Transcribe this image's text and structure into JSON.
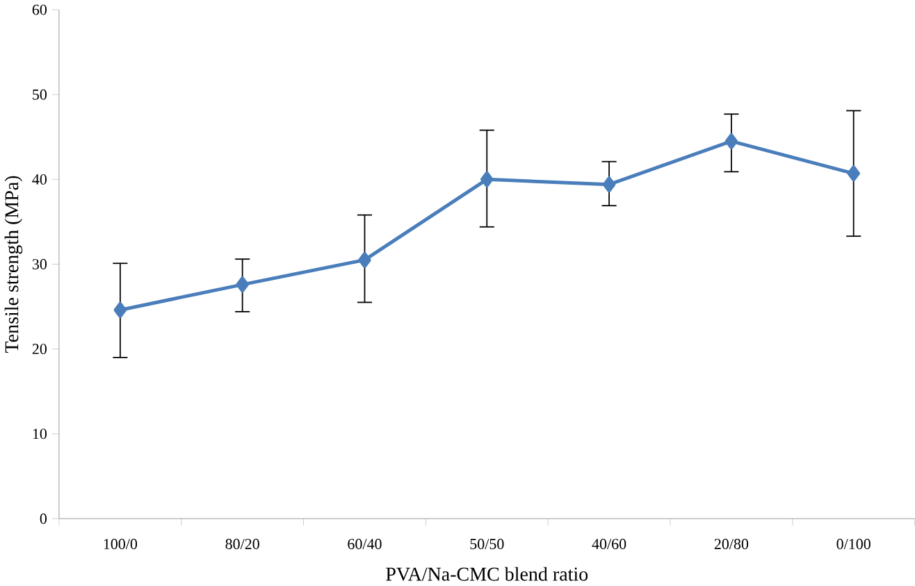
{
  "chart_data": {
    "type": "line",
    "xlabel": "PVA/Na-CMC blend ratio",
    "ylabel": "Tensile strength (MPa)",
    "categories": [
      "100/0",
      "80/20",
      "60/40",
      "50/50",
      "40/60",
      "20/80",
      "0/100"
    ],
    "values": [
      24.6,
      27.6,
      30.5,
      40.0,
      39.4,
      44.5,
      40.7
    ],
    "errors": [
      [
        19.0,
        30.1
      ],
      [
        24.4,
        30.6
      ],
      [
        25.5,
        35.8
      ],
      [
        34.4,
        45.8
      ],
      [
        36.9,
        42.1
      ],
      [
        40.9,
        47.7
      ],
      [
        33.3,
        48.1
      ]
    ],
    "color": "#4a7ebb",
    "marker": "diamond",
    "line_style": "solid",
    "grid": false,
    "ylim": [
      0,
      60
    ],
    "yticks": [
      0,
      10,
      20,
      30,
      40,
      50,
      60
    ]
  }
}
